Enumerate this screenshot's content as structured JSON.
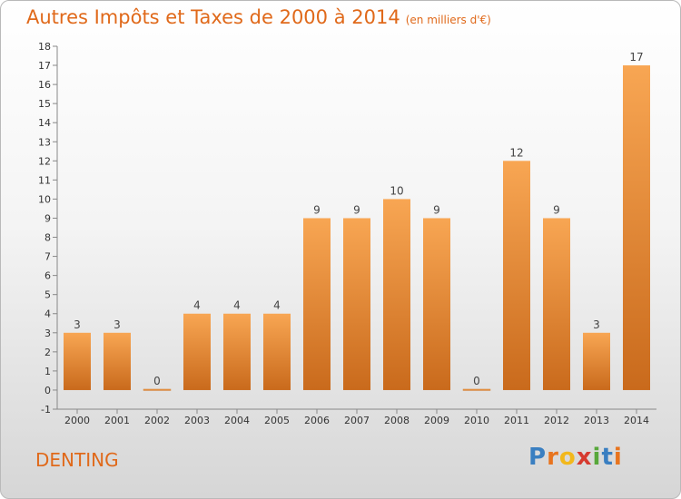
{
  "header": {
    "title": "Autres Impôts et Taxes de 2000 à 2014",
    "subtitle": "(en milliers d'€)"
  },
  "footer": {
    "commune": "DENTING",
    "logo": "Proxiti",
    "logo_letters": [
      "P",
      "r",
      "o",
      "x",
      "i",
      "t",
      "i"
    ],
    "logo_colors": [
      "#3a7fc1",
      "#e8741e",
      "#f2b81c",
      "#d63a2f",
      "#58a83b",
      "#3a7fc1",
      "#e8741e"
    ]
  },
  "colors": {
    "title": "#e0691a",
    "bar_top": "#f8a653",
    "bar_bottom": "#c96a1c",
    "axis": "#888888"
  },
  "chart_data": {
    "type": "bar",
    "categories": [
      "2000",
      "2001",
      "2002",
      "2003",
      "2004",
      "2005",
      "2006",
      "2007",
      "2008",
      "2009",
      "2010",
      "2011",
      "2012",
      "2013",
      "2014"
    ],
    "values": [
      3,
      3,
      0,
      4,
      4,
      4,
      9,
      9,
      10,
      9,
      0,
      12,
      9,
      3,
      17
    ],
    "yticks": [
      "-1",
      "0",
      "1",
      "2",
      "3",
      "4",
      "5",
      "6",
      "7",
      "8",
      "9",
      "10",
      "11",
      "12",
      "13",
      "14",
      "15",
      "16",
      "17",
      "18"
    ],
    "ylim": [
      -1,
      18
    ],
    "grid": false
  }
}
